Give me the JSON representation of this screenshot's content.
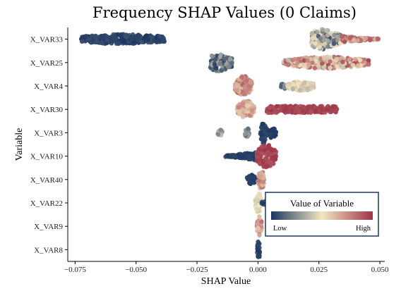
{
  "chart_data": {
    "type": "scatter",
    "subtype": "shap-beeswarm",
    "title": "Frequency SHAP Values (0 Claims)",
    "xlabel": "SHAP Value",
    "ylabel": "Variable",
    "xlim": [
      -0.078,
      0.052
    ],
    "xticks": [
      -0.075,
      -0.05,
      -0.025,
      0.0,
      0.025,
      0.05
    ],
    "xtick_labels": [
      "−0.075",
      "−0.050",
      "−0.025",
      "0.000",
      "0.025",
      "0.050"
    ],
    "categories": [
      "X_VAR33",
      "X_VAR25",
      "X_VAR4",
      "X_VAR30",
      "X_VAR3",
      "X_VAR10",
      "X_VAR40",
      "X_VAR22",
      "X_VAR9",
      "X_VAR8"
    ],
    "colors": {
      "low": "#1d3660",
      "mid": "#f2e6c0",
      "high": "#9e3448"
    },
    "legend": {
      "title": "Value of Variable",
      "low_label": "Low",
      "high_label": "High",
      "position": "bottom-right"
    },
    "grid": false,
    "series": [
      {
        "variable": "X_VAR33",
        "clusters": [
          {
            "min": -0.0725,
            "max": -0.038,
            "spread": 0.5,
            "shape": "tail",
            "c0": 0.0,
            "c1": 0.08
          },
          {
            "min": 0.022,
            "max": 0.0345,
            "spread": 1.0,
            "shape": "wedge",
            "c0": 0.05,
            "c1": 0.6
          },
          {
            "min": 0.0345,
            "max": 0.0495,
            "spread": 0.3,
            "shape": "taper",
            "c0": 0.6,
            "c1": 0.98
          }
        ]
      },
      {
        "variable": "X_VAR25",
        "clusters": [
          {
            "min": -0.0195,
            "max": -0.0105,
            "spread": 0.9,
            "shape": "wedge",
            "c0": 0.0,
            "c1": 0.35
          },
          {
            "min": 0.0105,
            "max": 0.0455,
            "spread": 0.55,
            "shape": "blob",
            "c0": 0.35,
            "c1": 0.98
          }
        ]
      },
      {
        "variable": "X_VAR4",
        "clusters": [
          {
            "min": -0.0095,
            "max": -0.0025,
            "spread": 0.95,
            "shape": "blob",
            "c0": 0.6,
            "c1": 0.9
          },
          {
            "min": 0.0095,
            "max": 0.012,
            "spread": 0.3,
            "shape": "blob",
            "c0": 0.05,
            "c1": 0.3
          },
          {
            "min": 0.012,
            "max": 0.0235,
            "spread": 0.45,
            "shape": "blob",
            "c0": 0.35,
            "c1": 0.6
          }
        ]
      },
      {
        "variable": "X_VAR30",
        "clusters": [
          {
            "min": -0.0085,
            "max": -0.0015,
            "spread": 0.85,
            "shape": "blob",
            "c0": 0.55,
            "c1": 0.8
          },
          {
            "min": 0.0035,
            "max": 0.033,
            "spread": 0.35,
            "shape": "band",
            "c0": 0.92,
            "c1": 1.0
          }
        ]
      },
      {
        "variable": "X_VAR3",
        "clusters": [
          {
            "min": -0.0165,
            "max": -0.0145,
            "spread": 0.3,
            "shape": "blob",
            "c0": 0.2,
            "c1": 0.4
          },
          {
            "min": -0.0055,
            "max": -0.0035,
            "spread": 0.45,
            "shape": "blob",
            "c0": 0.15,
            "c1": 0.3
          },
          {
            "min": 0.001,
            "max": 0.0035,
            "spread": 1.1,
            "shape": "blob",
            "c0": 0.0,
            "c1": 0.05
          },
          {
            "min": 0.0035,
            "max": 0.0075,
            "spread": 0.5,
            "shape": "blob",
            "c0": 0.0,
            "c1": 0.05
          }
        ]
      },
      {
        "variable": "X_VAR10",
        "clusters": [
          {
            "min": -0.0135,
            "max": -0.0005,
            "spread": 0.4,
            "shape": "taper-left",
            "c0": 0.0,
            "c1": 0.05
          },
          {
            "min": -0.0005,
            "max": 0.0075,
            "spread": 1.1,
            "shape": "blob",
            "c0": 0.9,
            "c1": 1.0
          }
        ]
      },
      {
        "variable": "X_VAR40",
        "clusters": [
          {
            "min": -0.0045,
            "max": -0.0005,
            "spread": 0.45,
            "shape": "blob",
            "c0": 0.0,
            "c1": 0.05
          },
          {
            "min": 0.0,
            "max": 0.0025,
            "spread": 1.0,
            "shape": "blob",
            "c0": 0.6,
            "c1": 0.85
          }
        ]
      },
      {
        "variable": "X_VAR22",
        "clusters": [
          {
            "min": -0.0012,
            "max": 0.0015,
            "spread": 0.95,
            "shape": "blob",
            "c0": 0.4,
            "c1": 0.55
          },
          {
            "min": 0.0015,
            "max": 0.0105,
            "spread": 0.25,
            "shape": "blob",
            "c0": 0.0,
            "c1": 0.1
          }
        ]
      },
      {
        "variable": "X_VAR9",
        "clusters": [
          {
            "min": -0.0005,
            "max": 0.0015,
            "spread": 1.0,
            "shape": "blob",
            "c0": 0.55,
            "c1": 0.95
          }
        ]
      },
      {
        "variable": "X_VAR8",
        "clusters": [
          {
            "min": -0.0003,
            "max": 0.0008,
            "spread": 1.0,
            "shape": "blob",
            "c0": 0.0,
            "c1": 0.05
          }
        ]
      }
    ]
  }
}
